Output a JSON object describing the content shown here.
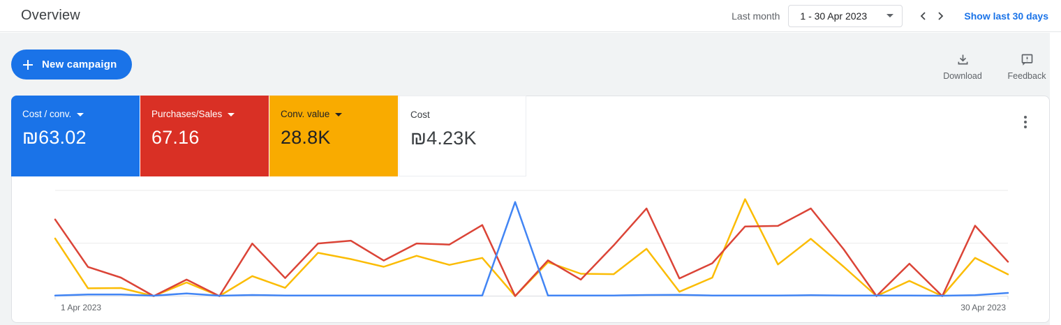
{
  "topbar": {
    "title": "Overview",
    "date_range_label": "Last month",
    "date_range_value": "1 - 30 Apr 2023",
    "show_last_30_label": "Show last 30 days"
  },
  "toolbar": {
    "new_campaign_label": "New campaign",
    "download_label": "Download",
    "feedback_label": "Feedback"
  },
  "metric_cards": [
    {
      "label": "Cost / conv.",
      "value": "₪63.02",
      "color": "#1a73e8",
      "text_color": "#ffffff",
      "has_dropdown": true
    },
    {
      "label": "Purchases/Sales",
      "value": "67.16",
      "color": "#d93025",
      "text_color": "#ffffff",
      "has_dropdown": true
    },
    {
      "label": "Conv. value",
      "value": "28.8K",
      "color": "#f9ab00",
      "text_color": "#202124",
      "has_dropdown": true
    },
    {
      "label": "Cost",
      "value": "₪4.23K",
      "color": "#ffffff",
      "text_color": "#3c4043",
      "has_dropdown": false
    }
  ],
  "chart_data": {
    "type": "line",
    "x": [
      1,
      2,
      3,
      4,
      5,
      6,
      7,
      8,
      9,
      10,
      11,
      12,
      13,
      14,
      15,
      16,
      17,
      18,
      19,
      20,
      21,
      22,
      23,
      24,
      25,
      26,
      27,
      28,
      29,
      30
    ],
    "x_tick_labels": [
      "1 Apr 2023",
      "30 Apr 2023"
    ],
    "ylim": [
      0,
      100
    ],
    "gridlines": [
      0,
      50,
      100
    ],
    "legend_position": "none",
    "series": [
      {
        "name": "Conv. value",
        "color": "#fbbc04",
        "values": [
          54.5,
          7.3,
          7.6,
          0,
          12.9,
          0,
          18.9,
          7.8,
          40.9,
          35,
          27.7,
          38.1,
          29.5,
          36.1,
          0,
          32,
          21.1,
          20.7,
          44.7,
          4.1,
          17.4,
          91.7,
          29.9,
          54.2,
          27.7,
          0,
          14.4,
          0,
          36.1,
          20.5
        ]
      },
      {
        "name": "Purchases/Sales",
        "color": "#db4437",
        "values": [
          72.5,
          27.5,
          17.5,
          0,
          15.6,
          0,
          49.7,
          17,
          49.8,
          52.4,
          33.6,
          49.8,
          48.7,
          67.2,
          0,
          33.8,
          15.6,
          48,
          82.9,
          16.7,
          31,
          65.9,
          66.4,
          82.9,
          44.2,
          0,
          30.6,
          0,
          66.6,
          32.5
        ]
      },
      {
        "name": "Cost / conv.",
        "color": "#4285f4",
        "values": [
          0.5,
          1.5,
          1.5,
          0.3,
          2.5,
          0.3,
          1,
          0.5,
          0.5,
          0.5,
          0.5,
          0.5,
          0.5,
          0.5,
          89,
          0.5,
          0.5,
          0.5,
          1,
          1.2,
          0.5,
          0.5,
          0.5,
          0.8,
          0.5,
          0.5,
          0.5,
          0.3,
          0.8,
          3
        ]
      }
    ]
  }
}
